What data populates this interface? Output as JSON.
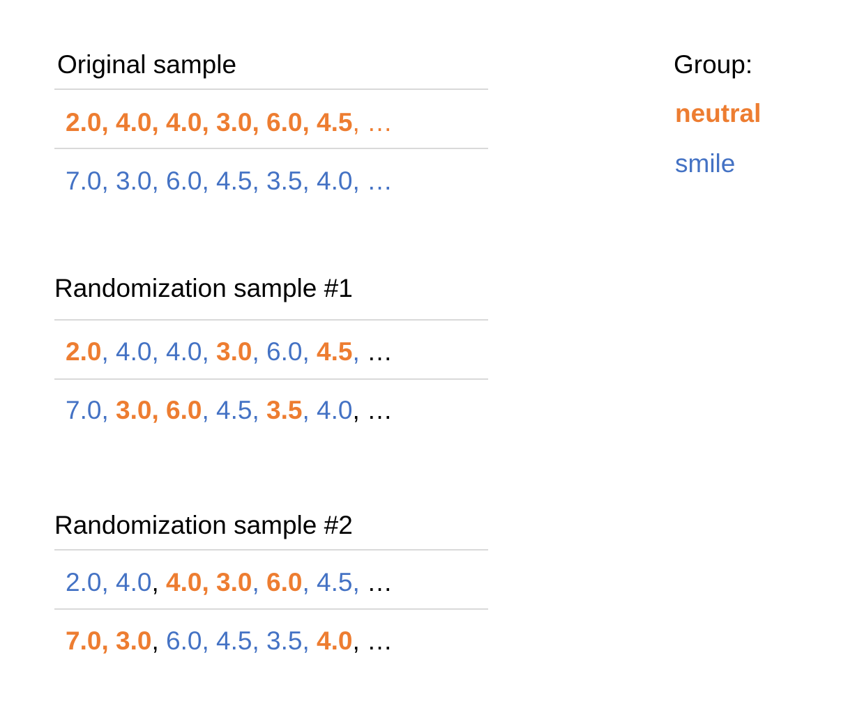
{
  "colors": {
    "neutral": "#ED7D31",
    "smile": "#4472C4",
    "plain": "#000000",
    "rule": "#d9d9d9"
  },
  "legend": {
    "title": "Group:",
    "items": [
      {
        "label": "neutral",
        "group": "neutral"
      },
      {
        "label": "smile",
        "group": "smile"
      }
    ]
  },
  "blocks": [
    {
      "title": "Original sample",
      "rows": [
        [
          {
            "t": "2.0",
            "g": "neutral"
          },
          {
            "t": ", ",
            "g": "neutral"
          },
          {
            "t": "4.0",
            "g": "neutral"
          },
          {
            "t": ", ",
            "g": "neutral"
          },
          {
            "t": "4.0",
            "g": "neutral"
          },
          {
            "t": ", ",
            "g": "neutral"
          },
          {
            "t": "3.0",
            "g": "neutral"
          },
          {
            "t": ", ",
            "g": "neutral"
          },
          {
            "t": "6.0",
            "g": "neutral"
          },
          {
            "t": ", ",
            "g": "neutral"
          },
          {
            "t": "4.5",
            "g": "neutral"
          },
          {
            "t": ", …",
            "g": "neutral-light"
          }
        ],
        [
          {
            "t": "7.0",
            "g": "smile"
          },
          {
            "t": ", ",
            "g": "smile"
          },
          {
            "t": "3.0",
            "g": "smile"
          },
          {
            "t": ", ",
            "g": "smile"
          },
          {
            "t": "6.0",
            "g": "smile"
          },
          {
            "t": ", ",
            "g": "smile"
          },
          {
            "t": "4.5",
            "g": "smile"
          },
          {
            "t": ", ",
            "g": "smile"
          },
          {
            "t": "3.5",
            "g": "smile"
          },
          {
            "t": ", ",
            "g": "smile"
          },
          {
            "t": "4.0",
            "g": "smile"
          },
          {
            "t": ", …",
            "g": "smile"
          }
        ]
      ]
    },
    {
      "title": "Randomization sample #1",
      "rows": [
        [
          {
            "t": "2.0",
            "g": "neutral"
          },
          {
            "t": ", ",
            "g": "smile"
          },
          {
            "t": "4.0",
            "g": "smile"
          },
          {
            "t": ", ",
            "g": "smile"
          },
          {
            "t": "4.0",
            "g": "smile"
          },
          {
            "t": ", ",
            "g": "smile"
          },
          {
            "t": "3.0",
            "g": "neutral"
          },
          {
            "t": ", ",
            "g": "smile"
          },
          {
            "t": "6.0",
            "g": "smile"
          },
          {
            "t": ", ",
            "g": "smile"
          },
          {
            "t": "4.5",
            "g": "neutral"
          },
          {
            "t": ", ",
            "g": "smile"
          },
          {
            "t": "…",
            "g": "plain"
          }
        ],
        [
          {
            "t": "7.0",
            "g": "smile"
          },
          {
            "t": ", ",
            "g": "smile"
          },
          {
            "t": "3.0",
            "g": "neutral"
          },
          {
            "t": ", ",
            "g": "neutral"
          },
          {
            "t": "6.0",
            "g": "neutral"
          },
          {
            "t": ", ",
            "g": "smile"
          },
          {
            "t": "4.5",
            "g": "smile"
          },
          {
            "t": ", ",
            "g": "smile"
          },
          {
            "t": "3.5",
            "g": "neutral"
          },
          {
            "t": ", ",
            "g": "smile"
          },
          {
            "t": "4.0",
            "g": "smile"
          },
          {
            "t": ", ",
            "g": "plain"
          },
          {
            "t": "…",
            "g": "plain"
          }
        ]
      ]
    },
    {
      "title": "Randomization sample #2",
      "rows": [
        [
          {
            "t": "2.0",
            "g": "smile"
          },
          {
            "t": ", ",
            "g": "smile"
          },
          {
            "t": "4.0",
            "g": "smile"
          },
          {
            "t": ", ",
            "g": "plain"
          },
          {
            "t": "4.0",
            "g": "neutral"
          },
          {
            "t": ", ",
            "g": "neutral"
          },
          {
            "t": "3.0",
            "g": "neutral"
          },
          {
            "t": ", ",
            "g": "smile"
          },
          {
            "t": "6.0",
            "g": "neutral"
          },
          {
            "t": ", ",
            "g": "smile"
          },
          {
            "t": "4.5",
            "g": "smile"
          },
          {
            "t": ", ",
            "g": "smile"
          },
          {
            "t": "…",
            "g": "plain"
          }
        ],
        [
          {
            "t": "7.0",
            "g": "neutral"
          },
          {
            "t": ", ",
            "g": "neutral"
          },
          {
            "t": "3.0",
            "g": "neutral"
          },
          {
            "t": ", ",
            "g": "plain"
          },
          {
            "t": "6.0",
            "g": "smile"
          },
          {
            "t": ", ",
            "g": "smile"
          },
          {
            "t": "4.5",
            "g": "smile"
          },
          {
            "t": ", ",
            "g": "smile"
          },
          {
            "t": "3.5",
            "g": "smile"
          },
          {
            "t": ", ",
            "g": "smile"
          },
          {
            "t": "4.0",
            "g": "neutral"
          },
          {
            "t": ", ",
            "g": "plain"
          },
          {
            "t": "…",
            "g": "plain"
          }
        ]
      ]
    }
  ]
}
